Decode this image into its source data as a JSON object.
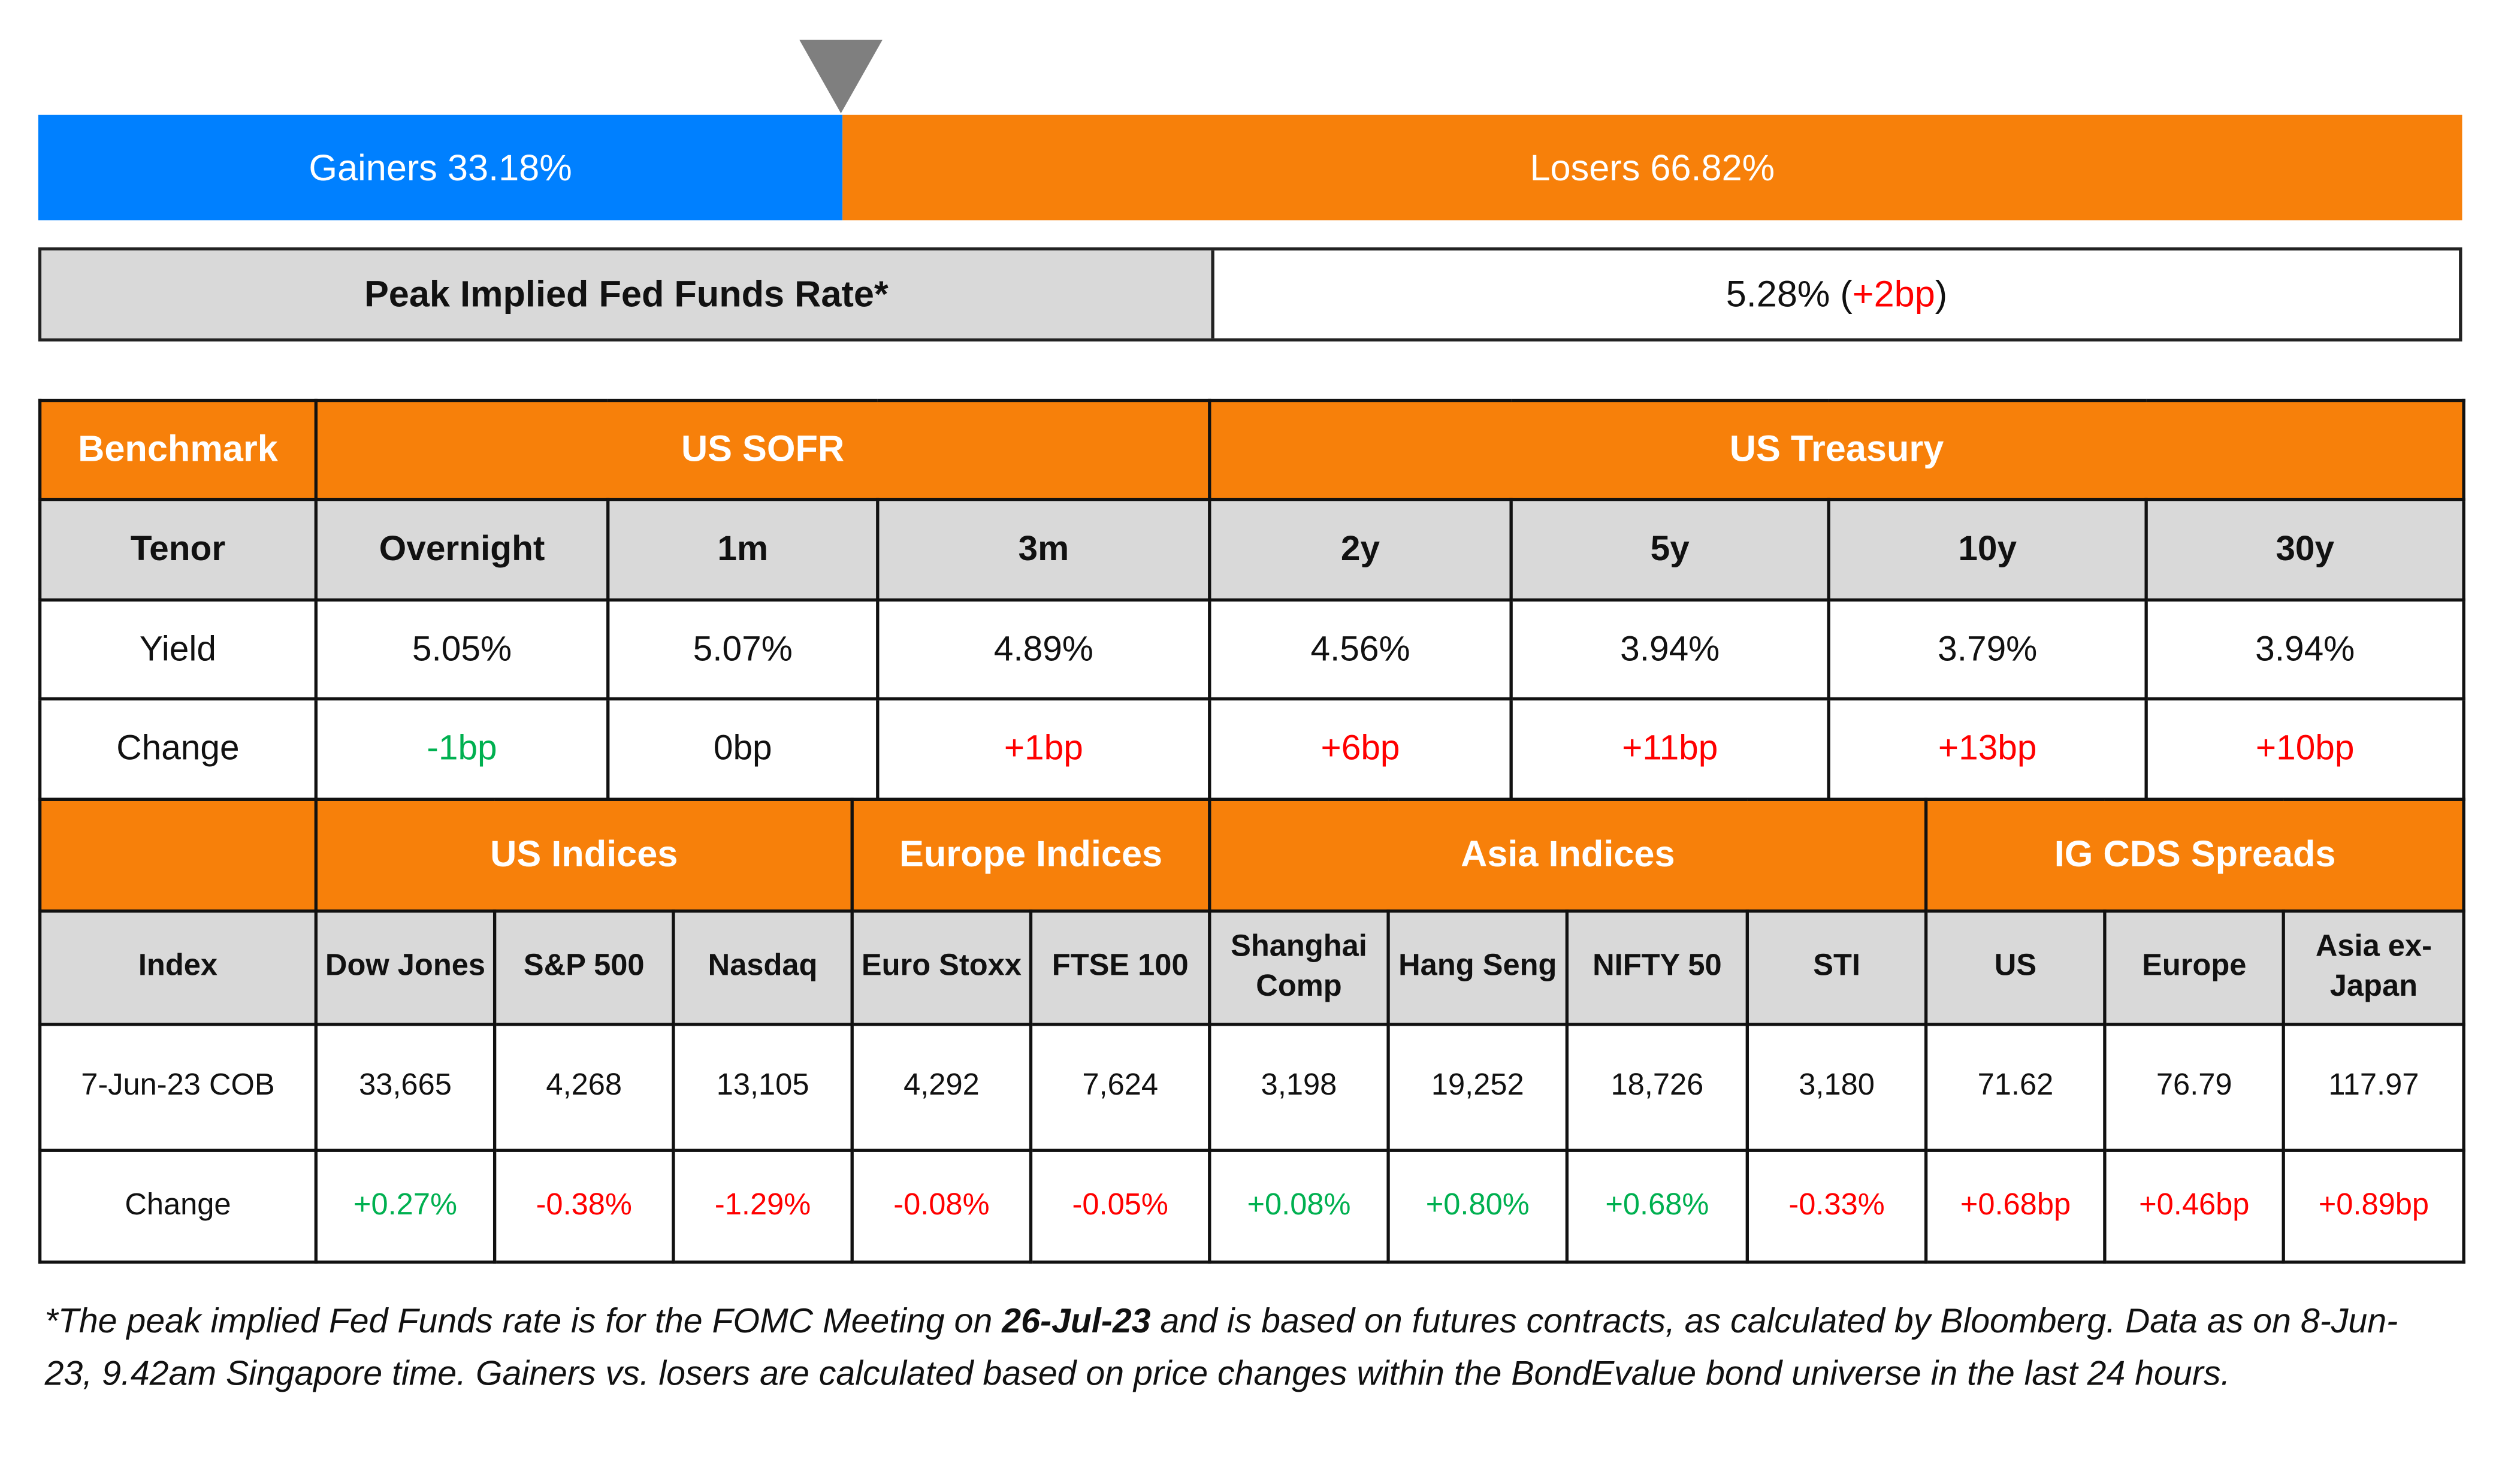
{
  "colors": {
    "gainers": "#0080ff",
    "losers": "#f7800a",
    "header": "#f7800a",
    "subheader": "#d9d9d9",
    "positive": "#00b050",
    "negative": "#ff0000",
    "marker": "#7f7f7f"
  },
  "breadth": {
    "gainers_label": "Gainers 33.18%",
    "losers_label": "Losers 66.82%",
    "gainers_pct": 33.18,
    "losers_pct": 66.82,
    "marker_icon": "triangle-down-icon"
  },
  "peak": {
    "label": "Peak Implied Fed Funds Rate*",
    "value": "5.28% (",
    "change": "+2bp",
    "close": ")"
  },
  "rates": {
    "groups": [
      {
        "label": "Benchmark",
        "span": 1
      },
      {
        "label": "US SOFR",
        "span": 3
      },
      {
        "label": "US Treasury",
        "span": 4
      }
    ],
    "tenor": [
      "Tenor",
      "Overnight",
      "1m",
      "3m",
      "2y",
      "5y",
      "10y",
      "30y"
    ],
    "yield": [
      "Yield",
      "5.05%",
      "5.07%",
      "4.89%",
      "4.56%",
      "3.94%",
      "3.79%",
      "3.94%"
    ],
    "change": [
      "Change",
      "-1bp",
      "0bp",
      "+1bp",
      "+6bp",
      "+11bp",
      "+13bp",
      "+10bp"
    ]
  },
  "indices": {
    "groups": [
      {
        "label": "",
        "span": 1
      },
      {
        "label": "US Indices",
        "span": 3
      },
      {
        "label": "Europe Indices",
        "span": 2
      },
      {
        "label": "Asia Indices",
        "span": 4
      },
      {
        "label": "IG CDS Spreads",
        "span": 3
      }
    ],
    "index": [
      "Index",
      "Dow Jones",
      "S&P 500",
      "Nasdaq",
      "Euro Stoxx",
      "FTSE 100",
      "Shanghai Comp",
      "Hang Seng",
      "NIFTY 50",
      "STI",
      "US",
      "Europe",
      "Asia ex-Japan"
    ],
    "values": [
      "7-Jun-23 COB",
      "33,665",
      "4,268",
      "13,105",
      "4,292",
      "7,624",
      "3,198",
      "19,252",
      "18,726",
      "3,180",
      "71.62",
      "76.79",
      "117.97"
    ],
    "change": [
      "Change",
      "+0.27%",
      "-0.38%",
      "-1.29%",
      "-0.08%",
      "-0.05%",
      "+0.08%",
      "+0.80%",
      "+0.68%",
      "-0.33%",
      "+0.68bp",
      "+0.46bp",
      "+0.89bp"
    ]
  },
  "footnote": {
    "part1": "*The peak implied Fed Funds rate is for the FOMC Meeting on ",
    "date": "26-Jul-23",
    "part2": " and is based on futures contracts, as calculated by Bloomberg. Data as on 8-Jun-23, 9.42am Singapore time. Gainers vs. losers are calculated based on price changes within the BondEvalue bond universe in the last 24 hours."
  }
}
